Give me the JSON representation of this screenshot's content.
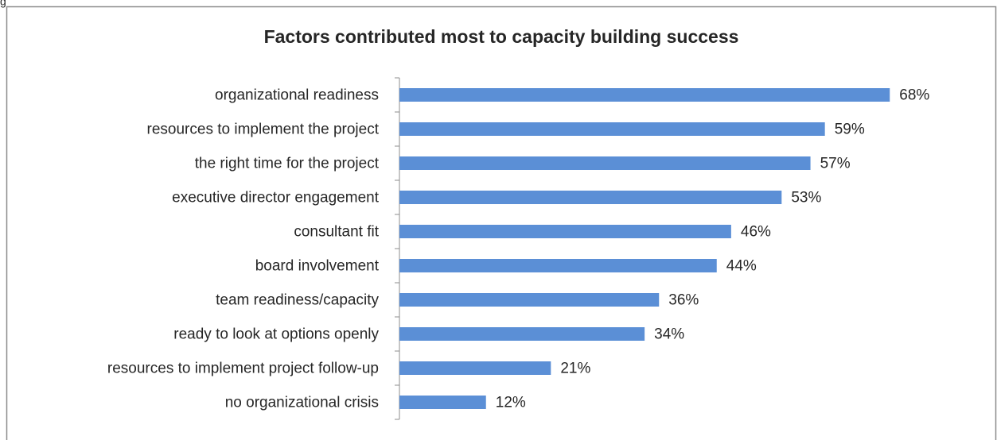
{
  "caption_fragment": "g",
  "chart_data": {
    "type": "hbar",
    "title": "Factors contributed most to capacity building success",
    "categories": [
      "organizational readiness",
      "resources to implement the project",
      "the right time for the project",
      "executive director engagement",
      "consultant fit",
      "board involvement",
      "team readiness/capacity",
      "ready to look at options openly",
      "resources to implement project follow-up",
      "no organizational crisis"
    ],
    "values": [
      68,
      59,
      57,
      53,
      46,
      44,
      36,
      34,
      21,
      12
    ],
    "value_labels": [
      "68%",
      "59%",
      "57%",
      "53%",
      "46%",
      "44%",
      "36%",
      "34%",
      "21%",
      "12%"
    ],
    "color": "#5b8fd6",
    "xlim": [
      0,
      80
    ]
  }
}
